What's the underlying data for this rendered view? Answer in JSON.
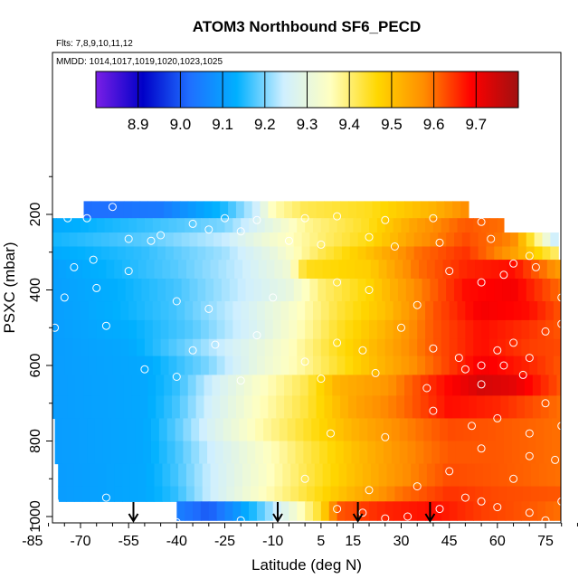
{
  "chart_data": {
    "type": "heatmap",
    "title": "ATOM3 Northbound SF6_PECD",
    "flights_note": "Flts: 7,8,9,10,11,12",
    "dates_note": "MMDD: 1014,1017,1019,1020,1023,1025",
    "xlabel": "Latitude (deg N)",
    "ylabel": "PSXC (mbar)",
    "xlim": [
      -85,
      85
    ],
    "ylim": [
      1000,
      30
    ],
    "x_ticks": [
      -85,
      -70,
      -55,
      -40,
      -25,
      -10,
      5,
      15,
      30,
      45,
      60,
      75
    ],
    "y_ticks": [
      200,
      400,
      600,
      800,
      1000
    ],
    "colorbar": {
      "range": [
        8.8,
        9.8
      ],
      "ticks": [
        "8.9",
        "9.0",
        "9.1",
        "9.2",
        "9.3",
        "9.4",
        "9.5",
        "9.6",
        "9.7"
      ],
      "colors": [
        "#7a1fe6",
        "#0000c8",
        "#1f6fff",
        "#00b0ff",
        "#cfefff",
        "#ffffc0",
        "#ffd700",
        "#ff8c00",
        "#ff0000",
        "#a01010"
      ]
    },
    "arrows_latitude": [
      -53.5,
      -8.5,
      16.5,
      39.0
    ],
    "layers": [
      {
        "p_top": 165,
        "p_bot": 210,
        "lat_min": -69,
        "lat_max": 51,
        "anchors": [
          [
            -69,
            9.02
          ],
          [
            -45,
            9.04
          ],
          [
            -25,
            9.15
          ],
          [
            -15,
            9.25
          ],
          [
            -10,
            9.36
          ],
          [
            0,
            9.42
          ],
          [
            20,
            9.45
          ],
          [
            40,
            9.52
          ],
          [
            51,
            9.58
          ]
        ]
      },
      {
        "p_top": 210,
        "p_bot": 248,
        "lat_min": -80,
        "lat_max": 62,
        "anchors": [
          [
            -80,
            9.12
          ],
          [
            -50,
            9.16
          ],
          [
            -25,
            9.2
          ],
          [
            -10,
            9.3
          ],
          [
            0,
            9.38
          ],
          [
            20,
            9.45
          ],
          [
            35,
            9.55
          ],
          [
            50,
            9.62
          ],
          [
            62,
            9.6
          ]
        ]
      },
      {
        "p_top": 248,
        "p_bot": 285,
        "lat_min": -81,
        "lat_max": 79,
        "anchors": [
          [
            -81,
            9.14
          ],
          [
            -50,
            9.18
          ],
          [
            -25,
            9.24
          ],
          [
            -10,
            9.33
          ],
          [
            5,
            9.4
          ],
          [
            20,
            9.46
          ],
          [
            35,
            9.56
          ],
          [
            50,
            9.63
          ],
          [
            65,
            9.58
          ],
          [
            79,
            9.22
          ]
        ]
      },
      {
        "p_top": 285,
        "p_bot": 320,
        "lat_min": -81,
        "lat_max": 79,
        "anchors": [
          [
            -81,
            9.12
          ],
          [
            -50,
            9.16
          ],
          [
            -25,
            9.22
          ],
          [
            -10,
            9.3
          ],
          [
            5,
            9.42
          ],
          [
            20,
            9.5
          ],
          [
            35,
            9.6
          ],
          [
            50,
            9.65
          ],
          [
            65,
            9.55
          ],
          [
            79,
            9.4
          ]
        ]
      },
      {
        "p_top": 320,
        "p_bot": 370,
        "lat_min": -82,
        "lat_max": 80,
        "anchors": [
          [
            -82,
            9.1
          ],
          [
            -60,
            9.14
          ],
          [
            -40,
            9.18
          ],
          [
            -20,
            9.24
          ],
          [
            -5,
            9.32
          ],
          [
            0,
            9.45
          ],
          [
            20,
            9.48
          ],
          [
            35,
            9.6
          ],
          [
            50,
            9.66
          ],
          [
            65,
            9.68
          ],
          [
            80,
            9.55
          ]
        ]
      },
      {
        "p_top": 370,
        "p_bot": 430,
        "lat_min": -81,
        "lat_max": 80,
        "anchors": [
          [
            -81,
            9.1
          ],
          [
            -60,
            9.13
          ],
          [
            -40,
            9.17
          ],
          [
            -20,
            9.24
          ],
          [
            -5,
            9.3
          ],
          [
            5,
            9.4
          ],
          [
            20,
            9.47
          ],
          [
            35,
            9.58
          ],
          [
            50,
            9.68
          ],
          [
            65,
            9.7
          ],
          [
            80,
            9.6
          ]
        ]
      },
      {
        "p_top": 430,
        "p_bot": 480,
        "lat_min": -80,
        "lat_max": 80,
        "anchors": [
          [
            -80,
            9.1
          ],
          [
            -60,
            9.13
          ],
          [
            -40,
            9.17
          ],
          [
            -20,
            9.25
          ],
          [
            -5,
            9.33
          ],
          [
            10,
            9.43
          ],
          [
            25,
            9.5
          ],
          [
            40,
            9.62
          ],
          [
            55,
            9.7
          ],
          [
            70,
            9.68
          ],
          [
            80,
            9.62
          ]
        ]
      },
      {
        "p_top": 480,
        "p_bot": 530,
        "lat_min": -80,
        "lat_max": 80,
        "anchors": [
          [
            -80,
            9.1
          ],
          [
            -55,
            9.13
          ],
          [
            -35,
            9.18
          ],
          [
            -15,
            9.27
          ],
          [
            0,
            9.37
          ],
          [
            10,
            9.44
          ],
          [
            25,
            9.52
          ],
          [
            40,
            9.62
          ],
          [
            55,
            9.68
          ],
          [
            70,
            9.65
          ],
          [
            80,
            9.62
          ]
        ]
      },
      {
        "p_top": 530,
        "p_bot": 575,
        "lat_min": -80,
        "lat_max": 80,
        "anchors": [
          [
            -80,
            9.1
          ],
          [
            -55,
            9.12
          ],
          [
            -35,
            9.2
          ],
          [
            -20,
            9.27
          ],
          [
            -5,
            9.35
          ],
          [
            10,
            9.45
          ],
          [
            25,
            9.53
          ],
          [
            40,
            9.62
          ],
          [
            55,
            9.68
          ],
          [
            70,
            9.64
          ],
          [
            80,
            9.63
          ]
        ]
      },
      {
        "p_top": 575,
        "p_bot": 625,
        "lat_min": -80,
        "lat_max": 80,
        "anchors": [
          [
            -80,
            9.1
          ],
          [
            -50,
            9.12
          ],
          [
            -30,
            9.2
          ],
          [
            -15,
            9.3
          ],
          [
            0,
            9.38
          ],
          [
            15,
            9.47
          ],
          [
            30,
            9.55
          ],
          [
            45,
            9.64
          ],
          [
            55,
            9.7
          ],
          [
            70,
            9.66
          ],
          [
            80,
            9.62
          ]
        ]
      },
      {
        "p_top": 625,
        "p_bot": 680,
        "lat_min": -79,
        "lat_max": 80,
        "anchors": [
          [
            -79,
            9.1
          ],
          [
            -50,
            9.12
          ],
          [
            -40,
            9.16
          ],
          [
            -30,
            9.24
          ],
          [
            -15,
            9.34
          ],
          [
            0,
            9.42
          ],
          [
            10,
            9.52
          ],
          [
            25,
            9.56
          ],
          [
            40,
            9.66
          ],
          [
            55,
            9.74
          ],
          [
            65,
            9.72
          ],
          [
            80,
            9.62
          ]
        ]
      },
      {
        "p_top": 680,
        "p_bot": 740,
        "lat_min": -79,
        "lat_max": 80,
        "anchors": [
          [
            -79,
            9.1
          ],
          [
            -50,
            9.12
          ],
          [
            -40,
            9.17
          ],
          [
            -30,
            9.25
          ],
          [
            -15,
            9.35
          ],
          [
            0,
            9.43
          ],
          [
            15,
            9.54
          ],
          [
            30,
            9.6
          ],
          [
            45,
            9.68
          ],
          [
            60,
            9.66
          ],
          [
            80,
            9.6
          ]
        ]
      },
      {
        "p_top": 740,
        "p_bot": 800,
        "lat_min": -78,
        "lat_max": 80,
        "anchors": [
          [
            -78,
            9.1
          ],
          [
            -50,
            9.12
          ],
          [
            -40,
            9.18
          ],
          [
            -30,
            9.26
          ],
          [
            -15,
            9.36
          ],
          [
            0,
            9.44
          ],
          [
            15,
            9.52
          ],
          [
            30,
            9.58
          ],
          [
            45,
            9.63
          ],
          [
            60,
            9.62
          ],
          [
            80,
            9.6
          ]
        ]
      },
      {
        "p_top": 800,
        "p_bot": 860,
        "lat_min": -78,
        "lat_max": 80,
        "anchors": [
          [
            -78,
            9.1
          ],
          [
            -50,
            9.12
          ],
          [
            -40,
            9.17
          ],
          [
            -30,
            9.24
          ],
          [
            -15,
            9.33
          ],
          [
            0,
            9.42
          ],
          [
            15,
            9.5
          ],
          [
            30,
            9.57
          ],
          [
            45,
            9.62
          ],
          [
            60,
            9.62
          ],
          [
            80,
            9.6
          ]
        ]
      },
      {
        "p_top": 860,
        "p_bot": 920,
        "lat_min": -77,
        "lat_max": 80,
        "anchors": [
          [
            -77,
            9.1
          ],
          [
            -50,
            9.12
          ],
          [
            -40,
            9.17
          ],
          [
            -30,
            9.24
          ],
          [
            -15,
            9.33
          ],
          [
            0,
            9.42
          ],
          [
            15,
            9.5
          ],
          [
            30,
            9.57
          ],
          [
            45,
            9.63
          ],
          [
            60,
            9.62
          ],
          [
            80,
            9.6
          ]
        ]
      },
      {
        "p_top": 920,
        "p_bot": 960,
        "lat_min": -77,
        "lat_max": 80,
        "anchors": [
          [
            -77,
            9.1
          ],
          [
            -50,
            9.12
          ],
          [
            -40,
            9.16
          ],
          [
            -30,
            9.24
          ],
          [
            -15,
            9.34
          ],
          [
            0,
            9.43
          ],
          [
            15,
            9.52
          ],
          [
            30,
            9.6
          ],
          [
            45,
            9.65
          ],
          [
            60,
            9.63
          ],
          [
            80,
            9.62
          ]
        ]
      },
      {
        "p_top": 960,
        "p_bot": 1010,
        "lat_min": -40,
        "lat_max": 80,
        "anchors": [
          [
            -40,
            9.05
          ],
          [
            -30,
            9.0
          ],
          [
            -22,
            9.08
          ],
          [
            -12,
            9.2
          ],
          [
            -5,
            9.3
          ],
          [
            5,
            9.45
          ],
          [
            10,
            9.62
          ],
          [
            25,
            9.66
          ],
          [
            40,
            9.68
          ],
          [
            55,
            9.64
          ],
          [
            70,
            9.62
          ],
          [
            80,
            9.6
          ]
        ]
      }
    ],
    "points": [
      [
        -74,
        210
      ],
      [
        -68,
        210
      ],
      [
        -60,
        180
      ],
      [
        -45,
        255
      ],
      [
        -35,
        225
      ],
      [
        -25,
        210
      ],
      [
        -15,
        215
      ],
      [
        0,
        210
      ],
      [
        10,
        205
      ],
      [
        25,
        215
      ],
      [
        40,
        210
      ],
      [
        55,
        220
      ],
      [
        -82,
        330
      ],
      [
        -72,
        340
      ],
      [
        -66,
        320
      ],
      [
        -55,
        265
      ],
      [
        -48,
        270
      ],
      [
        -30,
        240
      ],
      [
        -20,
        245
      ],
      [
        -5,
        270
      ],
      [
        5,
        280
      ],
      [
        20,
        260
      ],
      [
        28,
        285
      ],
      [
        42,
        275
      ],
      [
        58,
        265
      ],
      [
        65,
        330
      ],
      [
        70,
        310
      ],
      [
        -80,
        400
      ],
      [
        -75,
        420
      ],
      [
        -65,
        395
      ],
      [
        -55,
        350
      ],
      [
        -40,
        430
      ],
      [
        -30,
        450
      ],
      [
        -10,
        420
      ],
      [
        10,
        380
      ],
      [
        20,
        400
      ],
      [
        35,
        440
      ],
      [
        45,
        350
      ],
      [
        55,
        380
      ],
      [
        62,
        360
      ],
      [
        72,
        340
      ],
      [
        80,
        420
      ],
      [
        -83,
        460
      ],
      [
        -78,
        500
      ],
      [
        -62,
        495
      ],
      [
        -50,
        610
      ],
      [
        -35,
        560
      ],
      [
        -28,
        545
      ],
      [
        -15,
        520
      ],
      [
        0,
        590
      ],
      [
        10,
        540
      ],
      [
        18,
        560
      ],
      [
        30,
        500
      ],
      [
        40,
        555
      ],
      [
        48,
        580
      ],
      [
        55,
        600
      ],
      [
        60,
        560
      ],
      [
        65,
        540
      ],
      [
        70,
        580
      ],
      [
        75,
        510
      ],
      [
        80,
        490
      ],
      [
        -40,
        630
      ],
      [
        -20,
        640
      ],
      [
        5,
        635
      ],
      [
        22,
        620
      ],
      [
        38,
        660
      ],
      [
        50,
        610
      ],
      [
        55,
        650
      ],
      [
        62,
        600
      ],
      [
        68,
        625
      ],
      [
        75,
        700
      ],
      [
        8,
        780
      ],
      [
        25,
        790
      ],
      [
        40,
        720
      ],
      [
        52,
        760
      ],
      [
        60,
        740
      ],
      [
        70,
        780
      ],
      [
        80,
        760
      ],
      [
        -78,
        960
      ],
      [
        -62,
        950
      ],
      [
        -40,
        1015
      ],
      [
        -20,
        1010
      ],
      [
        -8,
        1000
      ],
      [
        10,
        980
      ],
      [
        18,
        990
      ],
      [
        25,
        1005
      ],
      [
        32,
        1000
      ],
      [
        42,
        980
      ],
      [
        50,
        950
      ],
      [
        55,
        960
      ],
      [
        60,
        975
      ],
      [
        70,
        990
      ],
      [
        80,
        960
      ],
      [
        75,
        1010
      ],
      [
        65,
        900
      ],
      [
        45,
        880
      ],
      [
        35,
        920
      ],
      [
        20,
        930
      ],
      [
        0,
        900
      ],
      [
        55,
        820
      ],
      [
        70,
        840
      ],
      [
        78,
        850
      ]
    ]
  }
}
